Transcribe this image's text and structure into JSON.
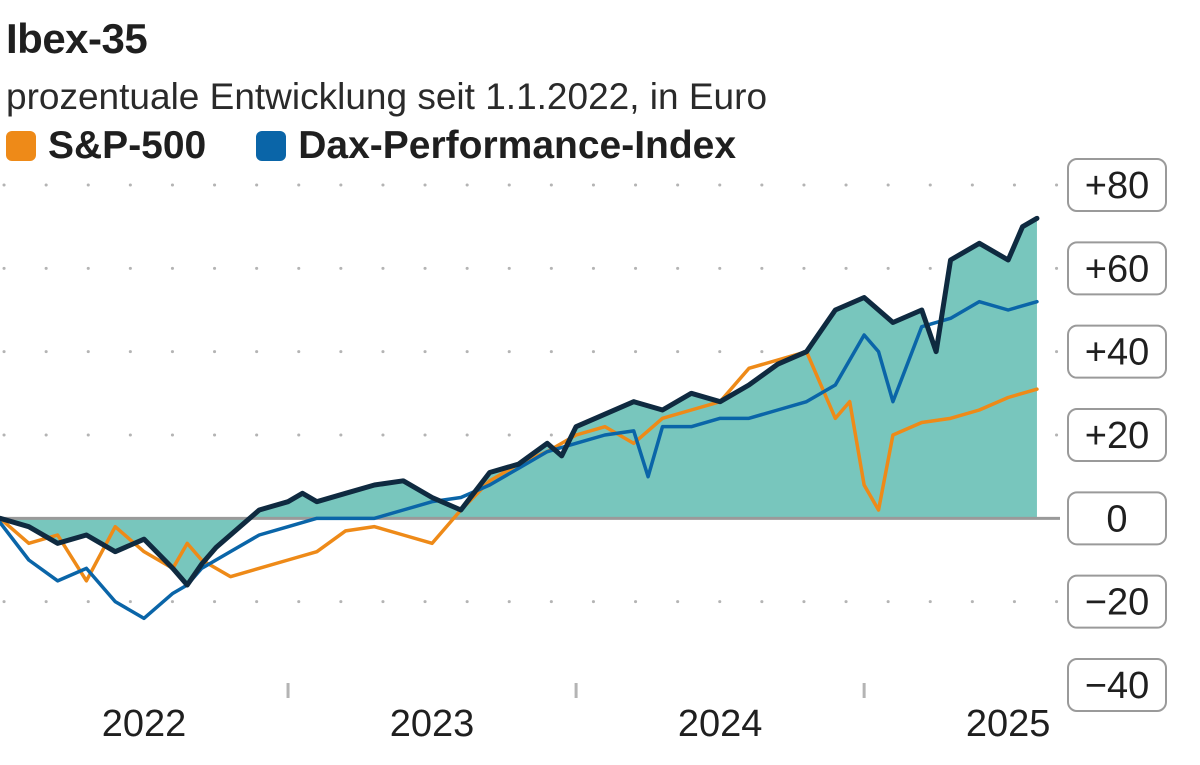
{
  "header": {
    "title": "Ibex-35",
    "subtitle": "prozentuale Entwicklung seit 1.1.2022, in Euro"
  },
  "legend": [
    {
      "label": "S&P-500",
      "color": "#ee8a18"
    },
    {
      "label": "Dax-Performance-Index",
      "color": "#0a65a8"
    }
  ],
  "chart_data": {
    "type": "line",
    "title": "Ibex-35",
    "subtitle": "prozentuale Entwicklung seit 1.1.2022, in Euro",
    "xlabel": "",
    "ylabel": "",
    "x_range": [
      2021.8,
      2025.48
    ],
    "ylim": [
      -40,
      80
    ],
    "y_ticks": [
      -40,
      -20,
      0,
      20,
      40,
      60,
      80
    ],
    "y_tick_labels": [
      "−40",
      "−20",
      "0",
      "+20",
      "+40",
      "+60",
      "+80"
    ],
    "x_ticks": [
      2022.3,
      2023.3,
      2024.3,
      2025.3
    ],
    "x_tick_labels": [
      "2022",
      "2023",
      "2024",
      "2025"
    ],
    "legend_position": "top-left",
    "colors": {
      "ibex_line": "#0f2a40",
      "ibex_fill": "#78c6bd",
      "zero_line": "#9a9a9a",
      "grid_dots": "#b4b4b4"
    },
    "series": [
      {
        "name": "Ibex-35",
        "color": "#0f2a40",
        "area": true,
        "x": [
          2021.8,
          2021.9,
          2022.0,
          2022.1,
          2022.2,
          2022.3,
          2022.4,
          2022.45,
          2022.5,
          2022.55,
          2022.6,
          2022.7,
          2022.8,
          2022.85,
          2022.9,
          2023.0,
          2023.1,
          2023.2,
          2023.3,
          2023.4,
          2023.5,
          2023.6,
          2023.7,
          2023.75,
          2023.8,
          2023.9,
          2024.0,
          2024.1,
          2024.2,
          2024.3,
          2024.4,
          2024.5,
          2024.6,
          2024.7,
          2024.8,
          2024.9,
          2025.0,
          2025.05,
          2025.1,
          2025.2,
          2025.3,
          2025.35,
          2025.4
        ],
        "values": [
          0,
          -2,
          -6,
          -4,
          -8,
          -5,
          -12,
          -16,
          -11,
          -7,
          -4,
          2,
          4,
          6,
          4,
          6,
          8,
          9,
          5,
          2,
          11,
          13,
          18,
          15,
          22,
          25,
          28,
          26,
          30,
          28,
          32,
          37,
          40,
          50,
          53,
          47,
          50,
          40,
          62,
          66,
          62,
          70,
          72
        ]
      },
      {
        "name": "S&P-500",
        "color": "#ee8a18",
        "x": [
          2021.8,
          2021.9,
          2022.0,
          2022.1,
          2022.2,
          2022.3,
          2022.4,
          2022.45,
          2022.5,
          2022.6,
          2022.7,
          2022.8,
          2022.9,
          2023.0,
          2023.1,
          2023.2,
          2023.3,
          2023.4,
          2023.5,
          2023.6,
          2023.7,
          2023.8,
          2023.9,
          2024.0,
          2024.1,
          2024.2,
          2024.3,
          2024.4,
          2024.5,
          2024.6,
          2024.7,
          2024.75,
          2024.8,
          2024.85,
          2024.9,
          2025.0,
          2025.1,
          2025.2,
          2025.3,
          2025.4
        ],
        "values": [
          0,
          -6,
          -4,
          -15,
          -2,
          -8,
          -12,
          -6,
          -10,
          -14,
          -12,
          -10,
          -8,
          -3,
          -2,
          -4,
          -6,
          2,
          9,
          13,
          16,
          20,
          22,
          18,
          24,
          26,
          28,
          36,
          38,
          40,
          24,
          28,
          8,
          2,
          20,
          23,
          24,
          26,
          29,
          31
        ]
      },
      {
        "name": "Dax-Performance-Index",
        "color": "#0a65a8",
        "x": [
          2021.8,
          2021.9,
          2022.0,
          2022.1,
          2022.2,
          2022.3,
          2022.4,
          2022.45,
          2022.5,
          2022.6,
          2022.7,
          2022.8,
          2022.9,
          2023.0,
          2023.1,
          2023.2,
          2023.3,
          2023.4,
          2023.5,
          2023.6,
          2023.7,
          2023.8,
          2023.9,
          2024.0,
          2024.05,
          2024.1,
          2024.2,
          2024.3,
          2024.4,
          2024.5,
          2024.6,
          2024.7,
          2024.8,
          2024.85,
          2024.9,
          2025.0,
          2025.1,
          2025.2,
          2025.3,
          2025.4
        ],
        "values": [
          -1,
          -10,
          -15,
          -12,
          -20,
          -24,
          -18,
          -16,
          -12,
          -8,
          -4,
          -2,
          0,
          0,
          0,
          2,
          4,
          5,
          8,
          12,
          16,
          18,
          20,
          21,
          10,
          22,
          22,
          24,
          24,
          26,
          28,
          32,
          44,
          40,
          28,
          46,
          48,
          52,
          50,
          52
        ]
      }
    ]
  }
}
